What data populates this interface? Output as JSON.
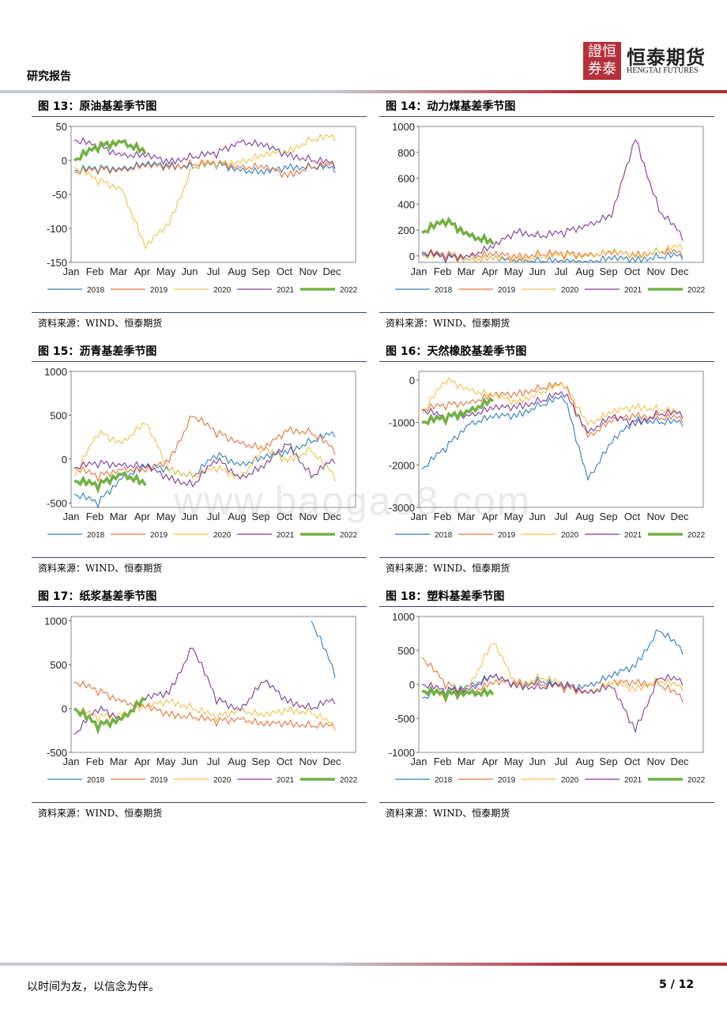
{
  "header": {
    "title": "研究报告",
    "logo_seal_text": "證恒\n券泰",
    "logo_cn": "恒泰期货",
    "logo_en": "HENGTAI FUTURES"
  },
  "footer": {
    "motto": "以时间为友，以信念为伴。",
    "page": "5 / 12"
  },
  "watermark": "www.baogao8.com",
  "colors": {
    "2018": "#2f7ebc",
    "2019": "#e8733c",
    "2020": "#f0c04a",
    "2021": "#7e3c98",
    "2022": "#72b043",
    "accent": "#b62a34"
  },
  "chart_data": [
    {
      "id": "fig13",
      "type": "line",
      "title": "图 13：原油基差季节图",
      "source": "资料来源：WIND、恒泰期货",
      "xlabels": [
        "Jan",
        "Feb",
        "Mar",
        "Apr",
        "May",
        "Jun",
        "Jul",
        "Aug",
        "Sep",
        "Oct",
        "Nov",
        "Dec"
      ],
      "yticks": [
        50,
        0,
        -50,
        -100,
        -150
      ],
      "ylim": [
        -150,
        50
      ],
      "grid": false,
      "legend": "bottom",
      "series": [
        {
          "name": "2018",
          "values": [
            -15,
            -12,
            -10,
            -8,
            -5,
            -10,
            -6,
            -12,
            -20,
            -8,
            -10,
            -12
          ]
        },
        {
          "name": "2019",
          "values": [
            -18,
            -14,
            -12,
            -10,
            -8,
            -6,
            -4,
            -8,
            -12,
            -20,
            -10,
            -6
          ]
        },
        {
          "name": "2020",
          "values": [
            -10,
            -30,
            -40,
            -130,
            -90,
            -10,
            -5,
            0,
            5,
            15,
            30,
            35
          ]
        },
        {
          "name": "2021",
          "values": [
            30,
            20,
            10,
            5,
            0,
            5,
            10,
            30,
            20,
            10,
            0,
            -5
          ]
        },
        {
          "name": "2022",
          "values": [
            0,
            20,
            30,
            10
          ]
        }
      ]
    },
    {
      "id": "fig14",
      "type": "line",
      "title": "图 14：动力煤基差季节图",
      "source": "资料来源：WIND、恒泰期货",
      "xlabels": [
        "Jan",
        "Feb",
        "Mar",
        "Apr",
        "May",
        "Jun",
        "Jul",
        "Aug",
        "Sep",
        "Oct",
        "Nov",
        "Dec"
      ],
      "yticks": [
        1000,
        800,
        600,
        400,
        200,
        0
      ],
      "ylim": [
        -50,
        1000
      ],
      "grid": false,
      "legend": "bottom",
      "series": [
        {
          "name": "2018",
          "values": [
            10,
            0,
            -20,
            -30,
            -40,
            -40,
            -50,
            -40,
            -30,
            -20,
            -10,
            0
          ]
        },
        {
          "name": "2019",
          "values": [
            20,
            10,
            5,
            0,
            5,
            10,
            15,
            20,
            10,
            20,
            30,
            20
          ]
        },
        {
          "name": "2020",
          "values": [
            0,
            -10,
            -20,
            -30,
            -20,
            -10,
            0,
            10,
            20,
            10,
            30,
            80
          ]
        },
        {
          "name": "2021",
          "values": [
            30,
            -20,
            10,
            60,
            200,
            150,
            180,
            250,
            300,
            920,
            350,
            150
          ]
        },
        {
          "name": "2022",
          "values": [
            180,
            270,
            170,
            90
          ]
        }
      ]
    },
    {
      "id": "fig15",
      "type": "line",
      "title": "图 15：沥青基差季节图",
      "source": "资料来源：WIND、恒泰期货",
      "xlabels": [
        "Jan",
        "Feb",
        "Mar",
        "Apr",
        "May",
        "Jun",
        "Jul",
        "Aug",
        "Sep",
        "Oct",
        "Nov",
        "Dec"
      ],
      "yticks": [
        1000,
        500,
        0,
        -500
      ],
      "ylim": [
        -550,
        1000
      ],
      "grid": false,
      "legend": "bottom",
      "series": [
        {
          "name": "2018",
          "values": [
            -400,
            -500,
            -200,
            -100,
            -100,
            -200,
            50,
            -50,
            0,
            100,
            200,
            300
          ]
        },
        {
          "name": "2019",
          "values": [
            -100,
            -200,
            -100,
            -150,
            0,
            500,
            300,
            200,
            100,
            350,
            300,
            100
          ]
        },
        {
          "name": "2020",
          "values": [
            -200,
            300,
            200,
            400,
            -100,
            -200,
            -100,
            -200,
            100,
            0,
            100,
            -200
          ]
        },
        {
          "name": "2021",
          "values": [
            -100,
            -50,
            -50,
            -100,
            -200,
            -300,
            0,
            -200,
            -100,
            200,
            -200,
            0
          ]
        },
        {
          "name": "2022",
          "values": [
            -250,
            -300,
            -150,
            -300
          ]
        }
      ]
    },
    {
      "id": "fig16",
      "type": "line",
      "title": "图 16：天然橡胶基差季节图",
      "source": "资料来源：WIND、恒泰期货",
      "xlabels": [
        "Jan",
        "Feb",
        "Mar",
        "Apr",
        "May",
        "Jun",
        "Jul",
        "Aug",
        "Sep",
        "Oct",
        "Nov",
        "Dec"
      ],
      "yticks": [
        0,
        -1000,
        -2000,
        -3000
      ],
      "ylim": [
        -3000,
        200
      ],
      "grid": false,
      "legend": "bottom",
      "series": [
        {
          "name": "2018",
          "values": [
            -2100,
            -1600,
            -1000,
            -900,
            -800,
            -600,
            -400,
            -2300,
            -1500,
            -900,
            -1000,
            -1000
          ]
        },
        {
          "name": "2019",
          "values": [
            -700,
            -600,
            -500,
            -400,
            -300,
            -200,
            -100,
            -1300,
            -1000,
            -800,
            -900,
            -900
          ]
        },
        {
          "name": "2020",
          "values": [
            -800,
            0,
            -200,
            -400,
            -500,
            -300,
            -100,
            -1000,
            -800,
            -600,
            -700,
            -800
          ]
        },
        {
          "name": "2021",
          "values": [
            -700,
            -900,
            -800,
            -700,
            -600,
            -500,
            -300,
            -1200,
            -900,
            -1000,
            -800,
            -800
          ]
        },
        {
          "name": "2022",
          "values": [
            -1000,
            -900,
            -700,
            -500
          ]
        }
      ]
    },
    {
      "id": "fig17",
      "type": "line",
      "title": "图 17：纸浆基差季节图",
      "source": "资料来源：WIND、恒泰期货",
      "xlabels": [
        "Jan",
        "Feb",
        "Mar",
        "Apr",
        "May",
        "Jun",
        "Jul",
        "Aug",
        "Sep",
        "Oct",
        "Nov",
        "Dec"
      ],
      "yticks": [
        1000,
        500,
        0,
        -500
      ],
      "ylim": [
        -500,
        1050
      ],
      "grid": false,
      "legend": "bottom",
      "series": [
        {
          "name": "2018",
          "values": [
            null,
            null,
            null,
            null,
            null,
            null,
            null,
            null,
            null,
            null,
            1000,
            400
          ]
        },
        {
          "name": "2019",
          "values": [
            300,
            200,
            100,
            0,
            -50,
            -100,
            -150,
            -100,
            -200,
            -150,
            -200,
            -200
          ]
        },
        {
          "name": "2020",
          "values": [
            0,
            -100,
            -50,
            0,
            100,
            0,
            -100,
            0,
            -100,
            0,
            -50,
            -200
          ]
        },
        {
          "name": "2021",
          "values": [
            -300,
            0,
            -100,
            100,
            200,
            700,
            100,
            0,
            300,
            100,
            0,
            100
          ]
        },
        {
          "name": "2022",
          "values": [
            0,
            -200,
            -100,
            100
          ]
        }
      ]
    },
    {
      "id": "fig18",
      "type": "line",
      "title": "图 18：塑料基差季节图",
      "source": "资料来源：WIND、恒泰期货",
      "xlabels": [
        "Jan",
        "Feb",
        "Mar",
        "Apr",
        "May",
        "Jun",
        "Jul",
        "Aug",
        "Sep",
        "Oct",
        "Nov",
        "Dec"
      ],
      "yticks": [
        1000,
        500,
        0,
        -500,
        -1000
      ],
      "ylim": [
        -1000,
        1000
      ],
      "grid": false,
      "legend": "bottom",
      "series": [
        {
          "name": "2018",
          "values": [
            -200,
            -100,
            0,
            100,
            0,
            50,
            -50,
            0,
            100,
            300,
            800,
            500
          ]
        },
        {
          "name": "2019",
          "values": [
            400,
            0,
            -100,
            0,
            50,
            0,
            -50,
            -100,
            0,
            50,
            0,
            -200
          ]
        },
        {
          "name": "2020",
          "values": [
            -100,
            -200,
            0,
            600,
            0,
            100,
            0,
            -100,
            0,
            -50,
            50,
            -50
          ]
        },
        {
          "name": "2021",
          "values": [
            0,
            -100,
            -50,
            100,
            0,
            -50,
            0,
            -100,
            -50,
            -650,
            100,
            50
          ]
        },
        {
          "name": "2022",
          "values": [
            -100,
            -150,
            -100,
            -150
          ]
        }
      ]
    }
  ]
}
